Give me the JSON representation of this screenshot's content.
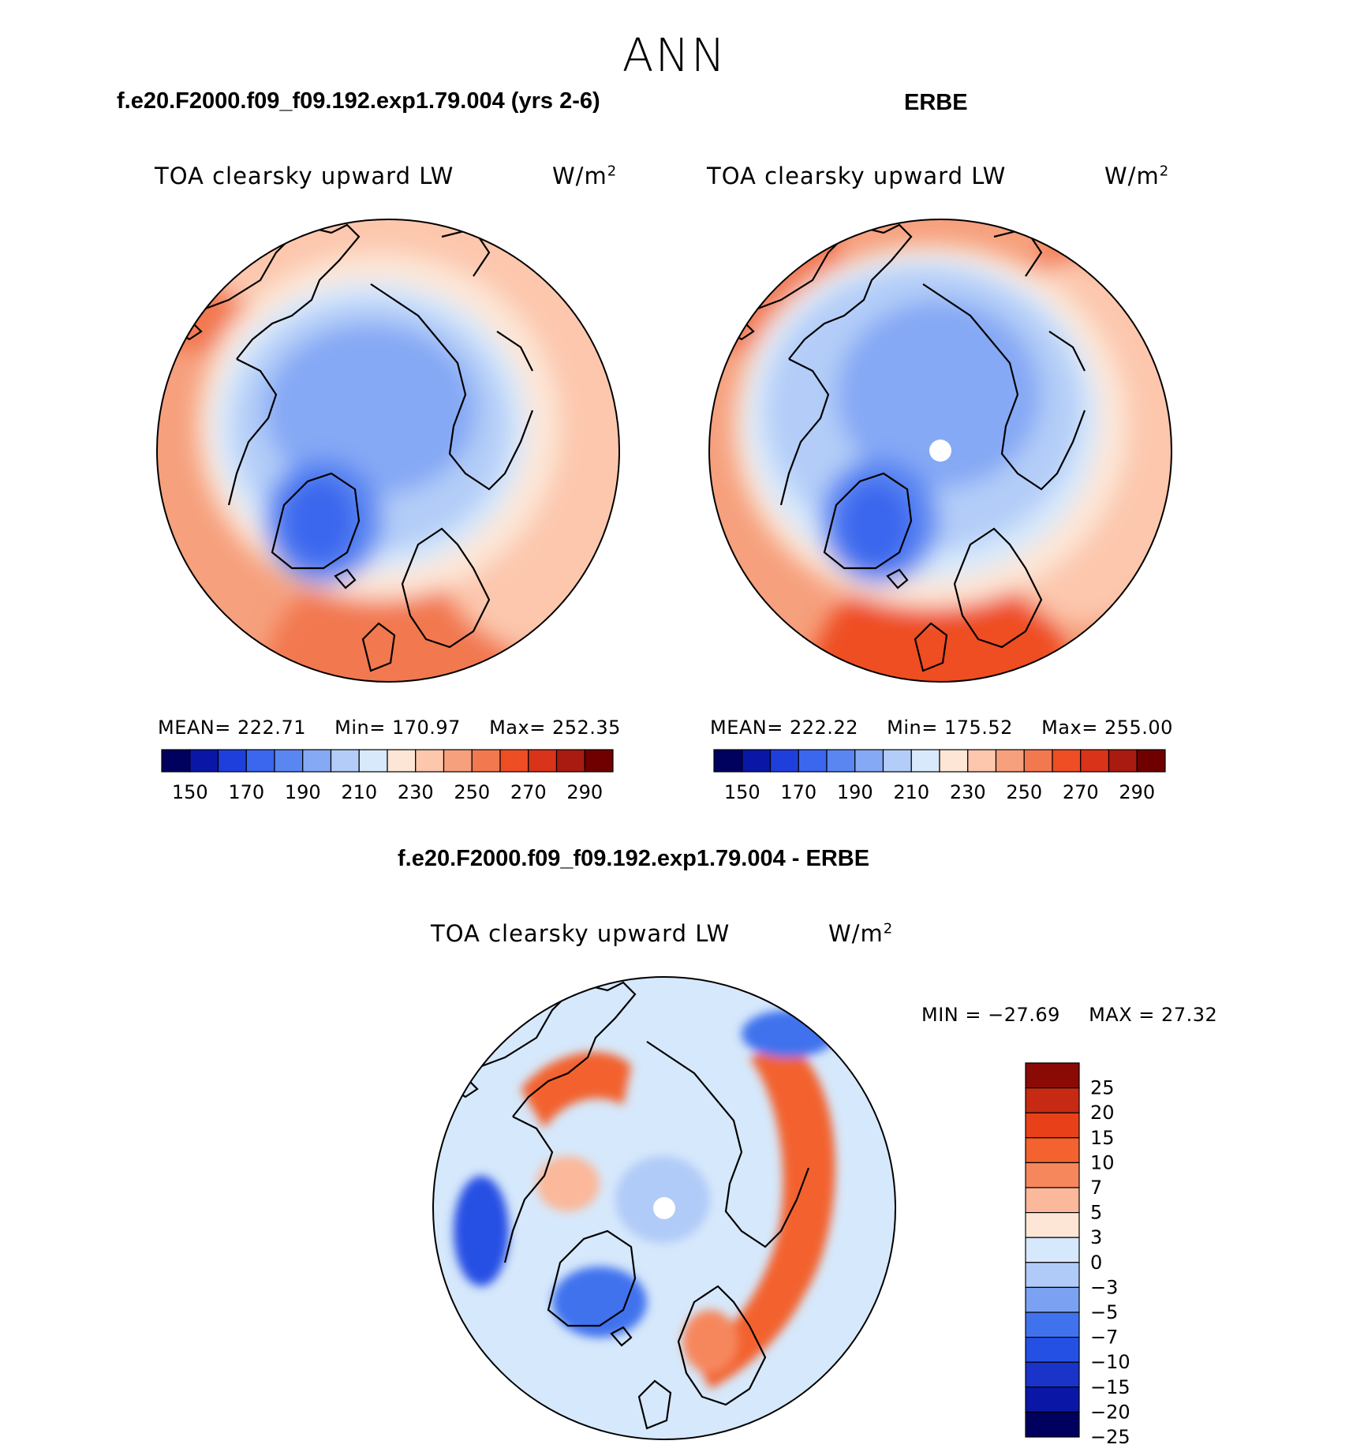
{
  "season": "ANN",
  "colors": {
    "abs_scale": [
      "#00005f",
      "#0a17a6",
      "#1f3fdc",
      "#3b66ee",
      "#5a86f2",
      "#86a9f5",
      "#b3cdf8",
      "#d8e9fb",
      "#fde6d6",
      "#fcc7ad",
      "#f6a07d",
      "#f27850",
      "#ef4d24",
      "#d9331a",
      "#a91a10",
      "#700000"
    ],
    "diff_scale": [
      "#00005f",
      "#0a17a6",
      "#1a33c8",
      "#2550e4",
      "#4172ee",
      "#7ba1f3",
      "#b1cbf8",
      "#d6e8fb",
      "#fde6d6",
      "#fbb89a",
      "#f6875d",
      "#f3622f",
      "#e8411a",
      "#c72a12",
      "#8a0a06"
    ],
    "coast": "#000000"
  },
  "panels": [
    {
      "title": "f.e20.F2000.f09_f09.192.exp1.79.004 (yrs 2-6)",
      "variable": "TOA clearsky upward LW",
      "units": "W/m",
      "units_sup": "2",
      "stats": {
        "mean_label": "MEAN=",
        "mean": "222.71",
        "min_label": "Min=",
        "min": "170.97",
        "max_label": "Max=",
        "max": "252.35"
      }
    },
    {
      "title": "ERBE",
      "variable": "TOA clearsky upward LW",
      "units": "W/m",
      "units_sup": "2",
      "stats": {
        "mean_label": "MEAN=",
        "mean": "222.22",
        "min_label": "Min=",
        "min": "175.52",
        "max_label": "Max=",
        "max": "255.00"
      }
    },
    {
      "title": "f.e20.F2000.f09_f09.192.exp1.79.004 - ERBE",
      "variable": "TOA clearsky upward LW",
      "units": "W/m",
      "units_sup": "2",
      "stats": {
        "min_label": "MIN =",
        "min": "−27.69",
        "max_label": "MAX =",
        "max": "27.32"
      }
    }
  ],
  "chart_data": [
    {
      "type": "heatmap",
      "projection": "north polar stereographic",
      "title": "f.e20.F2000.f09_f09.192.exp1.79.004 (yrs 2-6)",
      "variable": "TOA clearsky upward LW",
      "units": "W/m2",
      "colorbar_ticks": [
        "150",
        "170",
        "190",
        "210",
        "230",
        "250",
        "270",
        "290"
      ],
      "mean": 222.71,
      "min": 170.97,
      "max": 252.35
    },
    {
      "type": "heatmap",
      "projection": "north polar stereographic",
      "title": "ERBE",
      "variable": "TOA clearsky upward LW",
      "units": "W/m2",
      "colorbar_ticks": [
        "150",
        "170",
        "190",
        "210",
        "230",
        "250",
        "270",
        "290"
      ],
      "mean": 222.22,
      "min": 175.52,
      "max": 255.0
    },
    {
      "type": "heatmap",
      "projection": "north polar stereographic",
      "title": "f.e20.F2000.f09_f09.192.exp1.79.004 - ERBE",
      "variable": "TOA clearsky upward LW",
      "units": "W/m2",
      "colorbar_ticks": [
        "25",
        "20",
        "15",
        "10",
        "7",
        "5",
        "3",
        "0",
        "−3",
        "−5",
        "−7",
        "−10",
        "−15",
        "−20",
        "−25"
      ],
      "min": -27.69,
      "max": 27.32
    }
  ]
}
